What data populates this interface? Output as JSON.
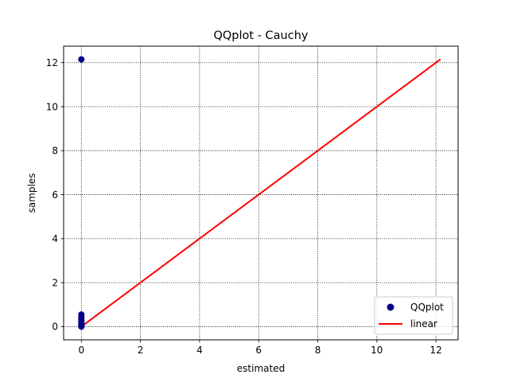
{
  "chart_data": {
    "type": "scatter",
    "title": "QQplot - Cauchy",
    "xlabel": "estimated",
    "ylabel": "samples",
    "xlim": [
      -0.6,
      12.75
    ],
    "ylim": [
      -0.6,
      12.75
    ],
    "xticks": [
      0,
      2,
      4,
      6,
      8,
      10,
      12
    ],
    "yticks": [
      0,
      2,
      4,
      6,
      8,
      10,
      12
    ],
    "grid": true,
    "legend_position": "lower right",
    "series": [
      {
        "name": "QQplot",
        "kind": "scatter",
        "color": "#00008b",
        "points": [
          [
            0,
            12.15
          ],
          [
            0,
            0.55
          ],
          [
            0,
            0.42
          ],
          [
            0,
            0.32
          ],
          [
            0,
            0.24
          ],
          [
            0,
            0.17
          ],
          [
            0,
            0.12
          ],
          [
            0,
            0.07
          ],
          [
            0,
            0.03
          ],
          [
            0,
            0.0
          ]
        ]
      },
      {
        "name": "linear",
        "kind": "line",
        "color": "#ff0000",
        "points": [
          [
            0,
            0
          ],
          [
            12.15,
            12.15
          ]
        ]
      }
    ]
  }
}
